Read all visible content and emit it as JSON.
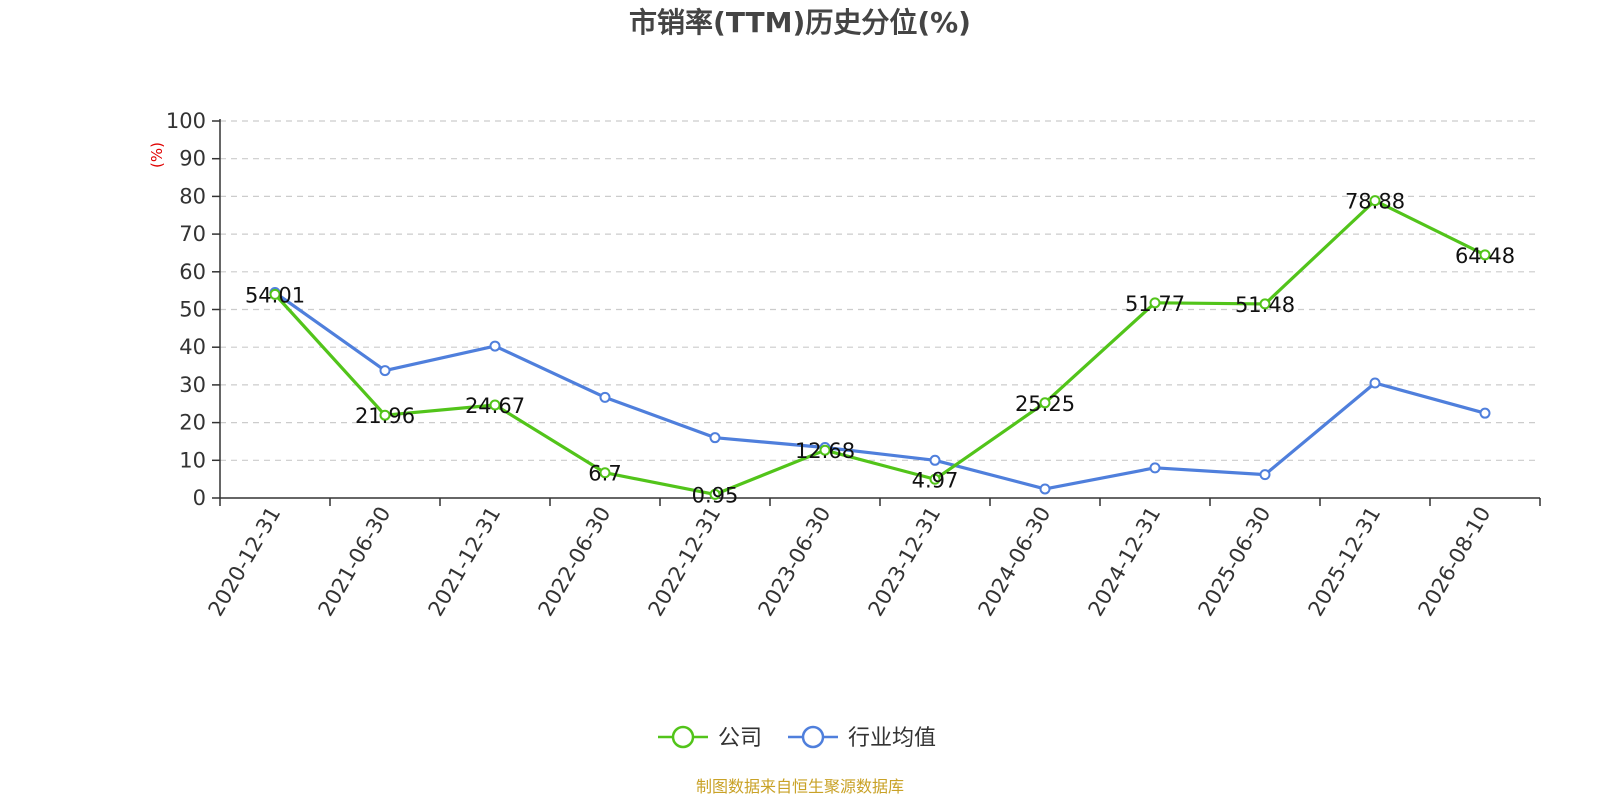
{
  "chart_data": {
    "type": "line",
    "title": "市销率(TTM)历史分位(%)",
    "ylabel": "(%)",
    "xlabel": "",
    "ylim": [
      0,
      100
    ],
    "yticks": [
      0,
      10,
      20,
      30,
      40,
      50,
      60,
      70,
      80,
      90,
      100
    ],
    "categories": [
      "2020-12-31",
      "2021-06-30",
      "2021-12-31",
      "2022-06-30",
      "2022-12-31",
      "2023-06-30",
      "2023-12-31",
      "2024-06-30",
      "2024-12-31",
      "2025-06-30",
      "2025-12-31",
      "2026-08-10"
    ],
    "grid": "horizontal dashed",
    "legend_position": "bottom-center",
    "series": [
      {
        "name": "公司",
        "color": "#52c41a",
        "values": [
          54.01,
          21.96,
          24.67,
          6.7,
          0.95,
          12.68,
          4.97,
          25.25,
          51.77,
          51.48,
          78.88,
          64.48
        ],
        "labels": [
          "54.01",
          "21.96",
          "24.67",
          "6.7",
          "0.95",
          "12.68",
          "4.97",
          "25.25",
          "51.77",
          "51.48",
          "78.88",
          "64.48"
        ]
      },
      {
        "name": "行业均值",
        "color": "#4f7fdc",
        "values": [
          54.5,
          33.8,
          40.3,
          26.7,
          16.0,
          13.4,
          10.0,
          2.4,
          8.0,
          6.2,
          30.5,
          22.5
        ]
      }
    ]
  },
  "source_text": "制图数据来自恒生聚源数据库",
  "colors": {
    "axis": "#333333",
    "grid": "#cccccc",
    "title": "#444444",
    "unit": "#e00000",
    "source": "#c9a227"
  }
}
